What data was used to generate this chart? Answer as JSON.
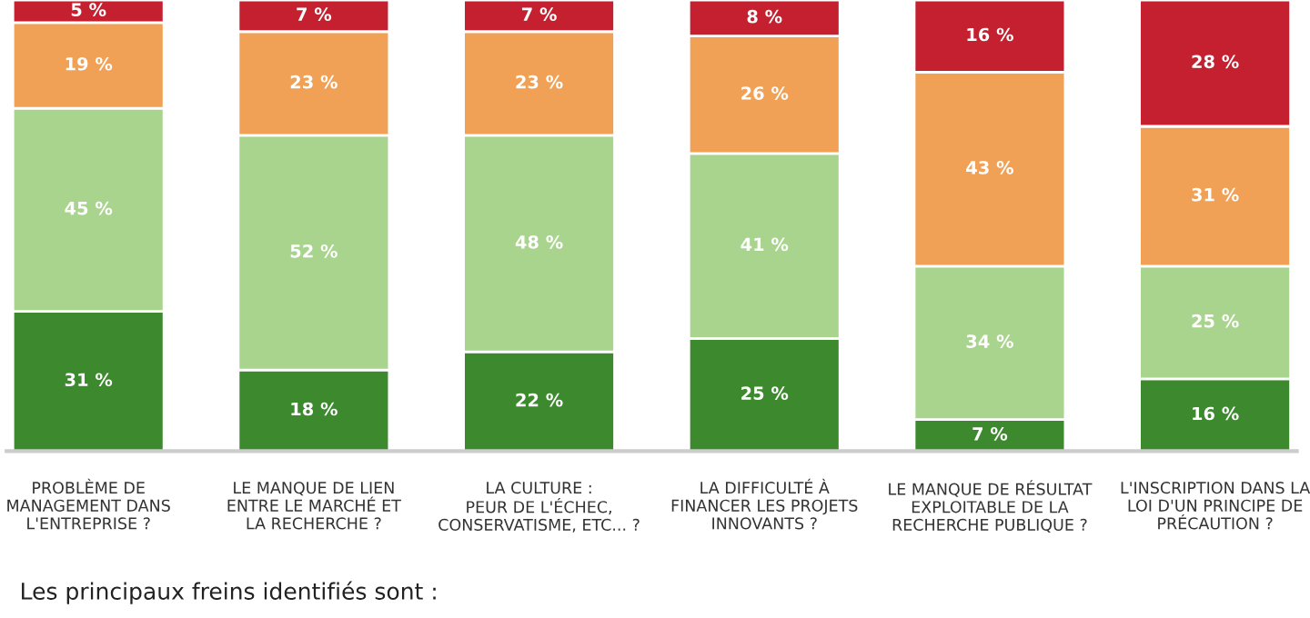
{
  "chart_data": {
    "type": "bar",
    "stacked": true,
    "categories": [
      "PROBLÈME DE\nMANAGEMENT DANS\nL'ENTREPRISE ?",
      "LE MANQUE DE LIEN\nENTRE LE MARCHÉ ET\nLA RECHERCHE ?",
      "LA CULTURE :\nPEUR DE L'ÉCHEC,\nCONSERVATISME, ETC... ?",
      "LA DIFFICULTÉ À\nFINANCER LES PROJETS\nINNOVANTS ?",
      "LE MANQUE DE RÉSULTAT\nEXPLOITABLE DE LA\nRECHERCHE PUBLIQUE ?",
      "L'INSCRIPTION DANS LA\nLOI D'UN PRINCIPE DE\nPRÉCAUTION ?"
    ],
    "series": [
      {
        "color": "#3d8a2e",
        "values": [
          31,
          18,
          22,
          25,
          7,
          16
        ],
        "value_labels": [
          "31 %",
          "18 %",
          "22 %",
          "25 %",
          "7 %",
          "16 %"
        ]
      },
      {
        "color": "#a9d48e",
        "values": [
          45,
          52,
          48,
          41,
          34,
          25
        ],
        "value_labels": [
          "45 %",
          "52 %",
          "48 %",
          "41 %",
          "34 %",
          "25 %"
        ]
      },
      {
        "color": "#f0a155",
        "values": [
          19,
          23,
          23,
          26,
          43,
          31
        ],
        "value_labels": [
          "19 %",
          "23 %",
          "23 %",
          "26 %",
          "43 %",
          "31 %"
        ]
      },
      {
        "color": "#c4202f",
        "values": [
          5,
          7,
          7,
          8,
          16,
          28
        ],
        "value_labels": [
          "5 %",
          "7 %",
          "7 %",
          "8 %",
          "16 %",
          "28 %"
        ]
      }
    ],
    "annotations": [
      "Les principaux freins identifiés sont :"
    ]
  }
}
